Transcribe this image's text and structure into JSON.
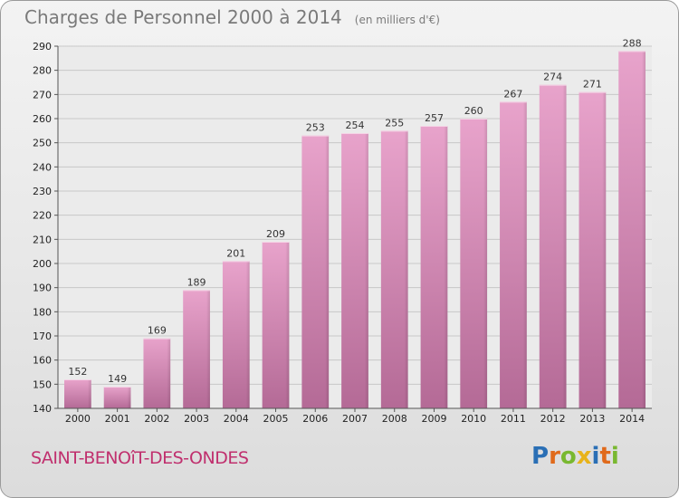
{
  "header": {
    "title": "Charges de Personnel 2000 à 2014",
    "unit": "(en milliers d'€)"
  },
  "footer": {
    "town": "SAINT-BENOîT-DES-ONDES",
    "brand_letters": [
      {
        "ch": "P",
        "color": "#2a6fb5"
      },
      {
        "ch": "r",
        "color": "#e06a1b"
      },
      {
        "ch": "o",
        "color": "#79b830"
      },
      {
        "ch": "x",
        "color": "#e8b31a"
      },
      {
        "ch": "i",
        "color": "#2a6fb5"
      },
      {
        "ch": "t",
        "color": "#e06a1b"
      },
      {
        "ch": "i",
        "color": "#79b830"
      }
    ]
  },
  "chart_data": {
    "type": "bar",
    "categories": [
      "2000",
      "2001",
      "2002",
      "2003",
      "2004",
      "2005",
      "2006",
      "2007",
      "2008",
      "2009",
      "2010",
      "2011",
      "2012",
      "2013",
      "2014"
    ],
    "values": [
      152,
      149,
      169,
      189,
      201,
      209,
      253,
      254,
      255,
      257,
      260,
      267,
      274,
      271,
      288
    ],
    "ylim": [
      140,
      290
    ],
    "yticks": [
      140,
      150,
      160,
      170,
      180,
      190,
      200,
      210,
      220,
      230,
      240,
      250,
      260,
      270,
      280,
      290
    ],
    "grid": true,
    "bar_color": "#cf7fae",
    "show_value_labels": true
  }
}
